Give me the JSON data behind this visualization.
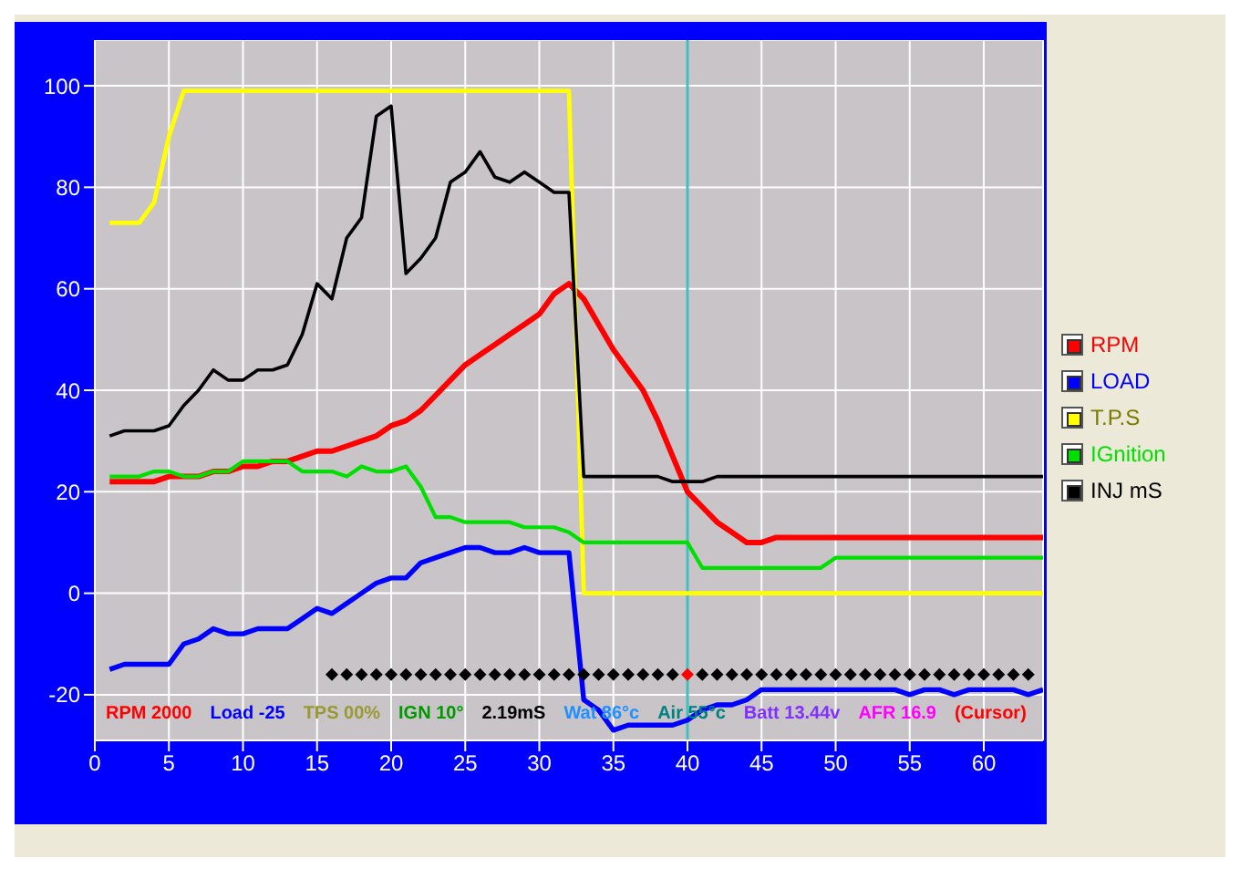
{
  "chart_data": {
    "type": "line",
    "x": [
      1,
      2,
      3,
      4,
      5,
      6,
      7,
      8,
      9,
      10,
      11,
      12,
      13,
      14,
      15,
      16,
      17,
      18,
      19,
      20,
      21,
      22,
      23,
      24,
      25,
      26,
      27,
      28,
      29,
      30,
      31,
      32,
      33,
      34,
      35,
      36,
      37,
      38,
      39,
      40,
      41,
      42,
      43,
      44,
      45,
      46,
      47,
      48,
      49,
      50,
      51,
      52,
      53,
      54,
      55,
      56,
      57,
      58,
      59,
      60,
      61,
      62,
      63,
      64
    ],
    "series": [
      {
        "name": "RPM",
        "color": "#ff0000",
        "values": [
          22,
          22,
          22,
          22,
          23,
          23,
          23,
          24,
          24,
          25,
          25,
          26,
          26,
          27,
          28,
          28,
          29,
          30,
          31,
          33,
          34,
          36,
          39,
          42,
          45,
          47,
          49,
          51,
          53,
          55,
          59,
          61,
          58,
          53,
          48,
          44,
          40,
          34,
          27,
          20,
          17,
          14,
          12,
          10,
          10,
          11,
          11,
          11,
          11,
          11,
          11,
          11,
          11,
          11,
          11,
          11,
          11,
          11,
          11,
          11,
          11,
          11,
          11,
          11
        ]
      },
      {
        "name": "LOAD",
        "color": "#0000ff",
        "values": [
          -15,
          -14,
          -14,
          -14,
          -14,
          -10,
          -9,
          -7,
          -8,
          -8,
          -7,
          -7,
          -7,
          -5,
          -3,
          -4,
          -2,
          0,
          2,
          3,
          3,
          6,
          7,
          8,
          9,
          9,
          8,
          8,
          9,
          8,
          8,
          8,
          -21,
          -23,
          -27,
          -26,
          -26,
          -26,
          -26,
          -25,
          -23,
          -22,
          -22,
          -21,
          -19,
          -19,
          -19,
          -19,
          -19,
          -19,
          -19,
          -19,
          -19,
          -19,
          -20,
          -19,
          -19,
          -20,
          -19,
          -19,
          -19,
          -19,
          -20,
          -19
        ]
      },
      {
        "name": "T.P.S",
        "color": "#ffff00",
        "values": [
          73,
          73,
          73,
          77,
          90,
          99,
          99,
          99,
          99,
          99,
          99,
          99,
          99,
          99,
          99,
          99,
          99,
          99,
          99,
          99,
          99,
          99,
          99,
          99,
          99,
          99,
          99,
          99,
          99,
          99,
          99,
          99,
          0,
          0,
          0,
          0,
          0,
          0,
          0,
          0,
          0,
          0,
          0,
          0,
          0,
          0,
          0,
          0,
          0,
          0,
          0,
          0,
          0,
          0,
          0,
          0,
          0,
          0,
          0,
          0,
          0,
          0,
          0,
          0
        ]
      },
      {
        "name": "IGnition",
        "color": "#00e000",
        "values": [
          23,
          23,
          23,
          24,
          24,
          23,
          23,
          24,
          24,
          26,
          26,
          26,
          26,
          24,
          24,
          24,
          23,
          25,
          24,
          24,
          25,
          21,
          15,
          15,
          14,
          14,
          14,
          14,
          13,
          13,
          13,
          12,
          10,
          10,
          10,
          10,
          10,
          10,
          10,
          10,
          5,
          5,
          5,
          5,
          5,
          5,
          5,
          5,
          5,
          7,
          7,
          7,
          7,
          7,
          7,
          7,
          7,
          7,
          7,
          7,
          7,
          7,
          7,
          7
        ]
      },
      {
        "name": "INJ mS",
        "color": "#000000",
        "values": [
          31,
          32,
          32,
          32,
          33,
          37,
          40,
          44,
          42,
          42,
          44,
          44,
          45,
          51,
          61,
          58,
          70,
          74,
          94,
          96,
          63,
          66,
          70,
          81,
          83,
          87,
          82,
          81,
          83,
          81,
          79,
          79,
          23,
          23,
          23,
          23,
          23,
          23,
          22,
          22,
          22,
          23,
          23,
          23,
          23,
          23,
          23,
          23,
          23,
          23,
          23,
          23,
          23,
          23,
          23,
          23,
          23,
          23,
          23,
          23,
          23,
          23,
          23,
          23
        ]
      },
      {
        "type": "scatter",
        "marker": "diamond",
        "color": "#000000",
        "x": [
          16,
          17,
          18,
          19,
          20,
          21,
          22,
          23,
          24,
          25,
          26,
          27,
          28,
          29,
          30,
          31,
          32,
          33,
          34,
          35,
          36,
          37,
          38,
          39,
          40,
          41,
          42,
          43,
          44,
          45,
          46,
          47,
          48,
          49,
          50,
          51,
          52,
          53,
          54,
          55,
          56,
          57,
          58,
          59,
          60,
          61,
          62,
          63
        ],
        "values": [
          -16,
          -16,
          -16,
          -16,
          -16,
          -16,
          -16,
          -16,
          -16,
          -16,
          -16,
          -16,
          -16,
          -16,
          -16,
          -16,
          -16,
          -16,
          -16,
          -16,
          -16,
          -16,
          -16,
          -16,
          -16,
          -16,
          -16,
          -16,
          -16,
          -16,
          -16,
          -16,
          -16,
          -16,
          -16,
          -16,
          -16,
          -16,
          -16,
          -16,
          -16,
          -16,
          -16,
          -16,
          -16,
          -16,
          -16,
          -16
        ],
        "colors": [
          "#000000",
          "#000000",
          "#000000",
          "#000000",
          "#000000",
          "#000000",
          "#000000",
          "#000000",
          "#000000",
          "#000000",
          "#000000",
          "#000000",
          "#000000",
          "#000000",
          "#000000",
          "#000000",
          "#000000",
          "#000000",
          "#000000",
          "#000000",
          "#000000",
          "#000000",
          "#000000",
          "#000000",
          "#ff0000",
          "#000000",
          "#000000",
          "#000000",
          "#000000",
          "#000000",
          "#000000",
          "#000000",
          "#000000",
          "#000000",
          "#000000",
          "#000000",
          "#000000",
          "#000000",
          "#000000",
          "#000000",
          "#000000",
          "#000000",
          "#000000",
          "#000000",
          "#000000",
          "#000000",
          "#000000",
          "#000000"
        ]
      }
    ],
    "xlim": [
      0,
      64
    ],
    "xticks": [
      0,
      5,
      10,
      15,
      20,
      25,
      30,
      35,
      40,
      45,
      50,
      55,
      60
    ],
    "ylim": [
      -29,
      109
    ],
    "yticks": [
      -20,
      0,
      20,
      40,
      60,
      80,
      100
    ],
    "grid": true,
    "legend": "right",
    "marker": "none",
    "line_style": "solid",
    "ref_lines": [
      {
        "axis": "x",
        "value": 40,
        "color": "#40c0c0"
      }
    ],
    "annotations": [
      "RPM 2000",
      "Load -25",
      "TPS 00%",
      "IGN 10°",
      "2.19mS",
      "Wat 86°c",
      "Air 55°c",
      "Batt 13.44v",
      "AFR 16.9",
      "(Cursor)"
    ]
  }
}
